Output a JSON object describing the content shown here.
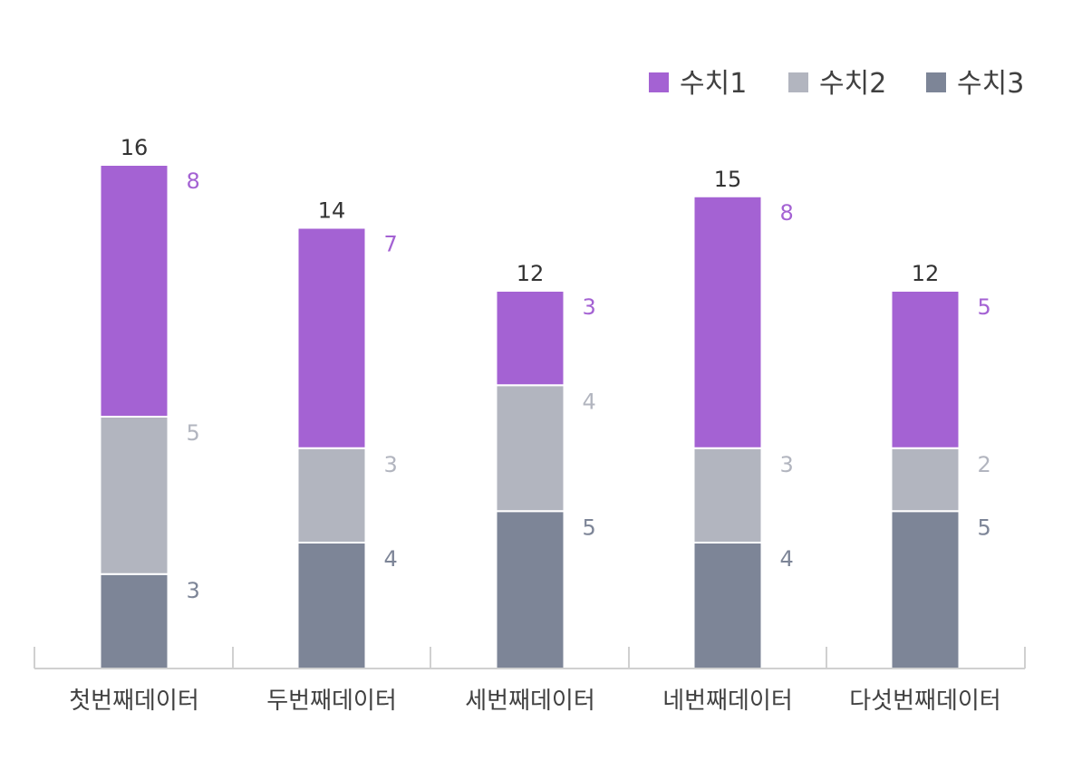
{
  "chart_data": {
    "type": "bar",
    "stacked": true,
    "categories": [
      "첫번째데이터",
      "두번째데이터",
      "세번째데이터",
      "네번째데이터",
      "다섯번째데이터"
    ],
    "series": [
      {
        "name": "수치1",
        "color": "#a462d3",
        "values": [
          8,
          7,
          3,
          8,
          5
        ]
      },
      {
        "name": "수치2",
        "color": "#b2b5bf",
        "values": [
          5,
          3,
          4,
          3,
          2
        ]
      },
      {
        "name": "수치3",
        "color": "#7d8597",
        "values": [
          3,
          4,
          5,
          4,
          5
        ]
      }
    ],
    "totals": [
      16,
      14,
      12,
      15,
      12
    ],
    "ylim": [
      0,
      16
    ],
    "grid": false,
    "legend_position": "top-right",
    "title": "",
    "xlabel": "",
    "ylabel": ""
  }
}
